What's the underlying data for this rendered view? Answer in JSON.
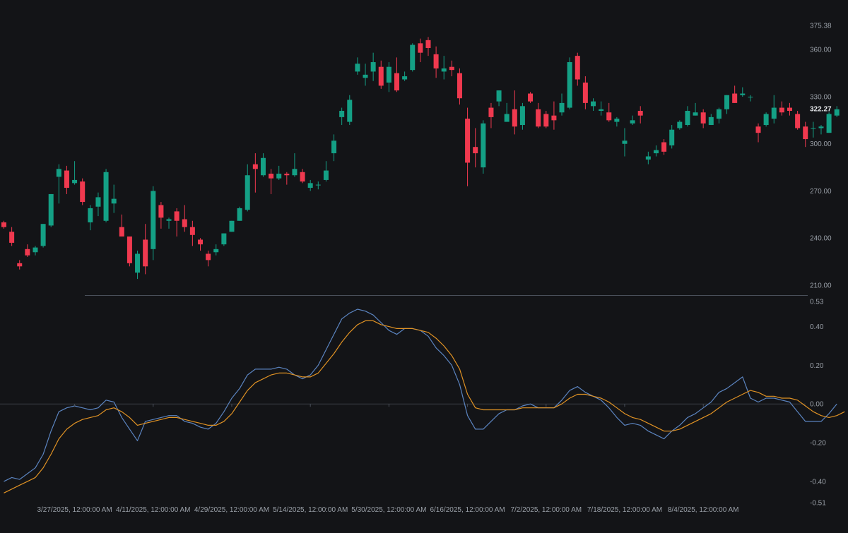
{
  "colors": {
    "background": "#131417",
    "up": "#14a085",
    "down": "#f0394f",
    "fast_line": "#5b84c0",
    "slow_line": "#e09224",
    "separator": "#4a505a",
    "zero_line": "#3a3f47",
    "axis_text": "#9aa0a8",
    "last_price_text": "#e6e8eb"
  },
  "chart_data": [
    {
      "type": "candlestick",
      "title": "",
      "y_axis_ticks": [
        210.0,
        240.0,
        270.0,
        300.0,
        330.0,
        360.0,
        375.38
      ],
      "ylim": [
        208.5,
        376.5
      ],
      "last_value_label": "322.27",
      "last_value": 322.27,
      "x_labels": [
        "3/27/2025, 12:00:00 AM",
        "4/11/2025, 12:00:00 AM",
        "4/29/2025, 12:00:00 AM",
        "5/14/2025, 12:00:00 AM",
        "5/30/2025, 12:00:00 AM",
        "6/16/2025, 12:00:00 AM",
        "7/2/2025, 12:00:00 AM",
        "7/18/2025, 12:00:00 AM",
        "8/4/2025, 12:00:00 AM"
      ],
      "x_label_bar_index": [
        9,
        19,
        29,
        39,
        49,
        59,
        69,
        79,
        89
      ],
      "candles": [
        [
          250,
          247,
          251,
          246
        ],
        [
          244,
          237,
          247,
          235
        ],
        [
          224,
          222,
          226,
          220
        ],
        [
          233,
          229,
          236,
          228
        ],
        [
          231,
          234,
          235,
          229
        ],
        [
          235,
          249,
          249,
          234
        ],
        [
          248,
          268,
          268,
          247
        ],
        [
          279,
          284,
          287,
          262
        ],
        [
          283,
          272,
          286,
          268
        ],
        [
          275,
          277,
          289,
          274
        ],
        [
          276,
          263,
          278,
          261
        ],
        [
          250,
          259,
          261,
          245
        ],
        [
          260,
          266,
          269,
          254
        ],
        [
          251,
          282,
          284,
          250
        ],
        [
          262,
          265,
          274,
          256
        ],
        [
          247,
          241,
          255,
          241
        ],
        [
          241,
          224,
          241,
          222
        ],
        [
          218,
          230,
          232,
          214
        ],
        [
          239,
          222,
          249,
          217
        ],
        [
          233,
          270,
          273,
          226
        ],
        [
          261,
          253,
          263,
          246
        ],
        [
          251,
          252,
          253,
          246
        ],
        [
          257,
          251,
          259,
          241
        ],
        [
          252,
          247,
          261,
          244
        ],
        [
          247,
          242,
          251,
          235
        ],
        [
          239,
          236,
          240,
          232
        ],
        [
          230,
          226,
          232,
          222
        ],
        [
          231,
          233,
          236,
          229
        ],
        [
          236,
          243,
          243,
          235
        ],
        [
          244,
          251,
          251,
          244
        ],
        [
          251,
          259,
          260,
          251
        ],
        [
          258,
          280,
          287,
          257
        ],
        [
          287,
          284,
          294,
          269
        ],
        [
          280,
          291,
          294,
          279
        ],
        [
          281,
          278,
          284,
          268
        ],
        [
          278,
          281,
          286,
          277
        ],
        [
          281,
          280,
          282,
          274
        ],
        [
          280,
          284,
          294,
          279
        ],
        [
          282,
          276,
          284,
          275
        ],
        [
          272,
          275,
          277,
          270
        ],
        [
          274,
          274,
          276,
          271
        ],
        [
          277,
          283,
          289,
          276
        ],
        [
          294,
          302,
          306,
          289
        ],
        [
          317,
          321,
          323,
          312
        ],
        [
          314,
          328,
          331,
          312
        ],
        [
          346,
          351,
          355,
          344
        ],
        [
          342,
          344,
          351,
          337
        ],
        [
          346,
          352,
          358,
          340
        ],
        [
          349,
          337,
          353,
          335
        ],
        [
          339,
          349,
          352,
          333
        ],
        [
          345,
          334,
          355,
          333
        ],
        [
          341,
          343,
          346,
          340
        ],
        [
          347,
          363,
          364,
          346
        ],
        [
          364,
          358,
          367,
          352
        ],
        [
          366,
          361,
          368,
          356
        ],
        [
          357,
          348,
          362,
          342
        ],
        [
          346,
          348,
          356,
          341
        ],
        [
          349,
          347,
          353,
          343
        ],
        [
          345,
          329,
          348,
          325
        ],
        [
          316,
          288,
          323,
          273
        ],
        [
          298,
          294,
          310,
          285
        ],
        [
          285,
          313,
          315,
          281
        ],
        [
          323,
          317,
          326,
          310
        ],
        [
          327,
          334,
          334,
          324
        ],
        [
          314,
          319,
          326,
          314
        ],
        [
          322,
          311,
          334,
          306
        ],
        [
          312,
          324,
          326,
          309
        ],
        [
          332,
          327,
          333,
          326
        ],
        [
          322,
          311,
          326,
          310
        ],
        [
          319,
          311,
          321,
          310
        ],
        [
          318,
          315,
          327,
          309
        ],
        [
          320,
          326,
          332,
          318
        ],
        [
          323,
          352,
          355,
          322
        ],
        [
          356,
          341,
          358,
          337
        ],
        [
          339,
          326,
          343,
          322
        ],
        [
          324,
          327,
          329,
          321
        ],
        [
          321,
          322,
          327,
          318
        ],
        [
          320,
          315,
          326,
          314
        ],
        [
          314,
          316,
          317,
          311
        ],
        [
          300,
          302,
          310,
          292
        ],
        [
          313,
          315,
          318,
          312
        ],
        [
          321,
          318,
          324,
          313
        ],
        [
          290,
          292,
          295,
          287
        ],
        [
          294,
          296,
          299,
          292
        ],
        [
          301,
          295,
          303,
          293
        ],
        [
          299,
          309,
          312,
          297
        ],
        [
          310,
          314,
          315,
          309
        ],
        [
          312,
          321,
          324,
          311
        ],
        [
          318,
          320,
          326,
          318
        ],
        [
          320,
          313,
          322,
          310
        ],
        [
          312,
          317,
          319,
          312
        ],
        [
          316,
          322,
          323,
          313
        ],
        [
          322,
          331,
          331,
          319
        ],
        [
          332,
          326,
          337,
          326
        ],
        [
          331,
          332,
          336,
          330
        ],
        [
          330,
          330,
          331,
          327
        ],
        [
          311,
          307,
          313,
          301
        ],
        [
          312,
          319,
          320,
          311
        ],
        [
          316,
          323,
          331,
          313
        ],
        [
          323,
          320,
          327,
          318
        ],
        [
          323,
          321,
          326,
          318
        ],
        [
          319,
          310,
          321,
          309
        ],
        [
          311,
          303,
          314,
          298
        ],
        [
          310,
          310,
          314,
          304
        ],
        [
          310,
          311,
          312,
          306
        ],
        [
          307,
          319,
          320,
          307
        ],
        [
          318,
          322,
          324,
          317
        ]
      ]
    },
    {
      "type": "line",
      "title": "",
      "y_axis_ticks": [
        -0.51,
        -0.4,
        -0.2,
        0.0,
        0.2,
        0.4,
        0.53
      ],
      "ylim": [
        -0.51,
        0.53
      ],
      "series": [
        {
          "color": "#5b84c0",
          "values": [
            -0.4,
            -0.38,
            -0.39,
            -0.36,
            -0.33,
            -0.26,
            -0.14,
            -0.04,
            -0.02,
            -0.01,
            -0.02,
            -0.03,
            -0.02,
            0.02,
            0.01,
            -0.07,
            -0.13,
            -0.19,
            -0.09,
            -0.08,
            -0.07,
            -0.06,
            -0.06,
            -0.09,
            -0.1,
            -0.12,
            -0.13,
            -0.1,
            -0.04,
            0.03,
            0.08,
            0.15,
            0.18,
            0.18,
            0.18,
            0.19,
            0.18,
            0.15,
            0.13,
            0.15,
            0.2,
            0.28,
            0.36,
            0.44,
            0.47,
            0.49,
            0.48,
            0.46,
            0.42,
            0.38,
            0.36,
            0.39,
            0.39,
            0.38,
            0.35,
            0.29,
            0.25,
            0.2,
            0.1,
            -0.06,
            -0.13,
            -0.13,
            -0.09,
            -0.05,
            -0.03,
            -0.03,
            -0.01,
            0.0,
            -0.02,
            -0.02,
            -0.02,
            0.02,
            0.07,
            0.09,
            0.06,
            0.04,
            0.02,
            -0.02,
            -0.07,
            -0.11,
            -0.1,
            -0.11,
            -0.14,
            -0.16,
            -0.18,
            -0.14,
            -0.11,
            -0.07,
            -0.05,
            -0.02,
            0.01,
            0.06,
            0.08,
            0.11,
            0.14,
            0.03,
            0.01,
            0.03,
            0.03,
            0.02,
            0.01,
            -0.04,
            -0.09,
            -0.09,
            -0.09,
            -0.05,
            0.0
          ]
        },
        {
          "color": "#e09224",
          "values": [
            -0.46,
            -0.44,
            -0.42,
            -0.4,
            -0.38,
            -0.33,
            -0.26,
            -0.18,
            -0.13,
            -0.1,
            -0.08,
            -0.07,
            -0.06,
            -0.03,
            -0.02,
            -0.04,
            -0.07,
            -0.11,
            -0.1,
            -0.09,
            -0.08,
            -0.07,
            -0.07,
            -0.08,
            -0.09,
            -0.1,
            -0.11,
            -0.11,
            -0.09,
            -0.05,
            0.01,
            0.07,
            0.11,
            0.13,
            0.15,
            0.16,
            0.16,
            0.15,
            0.14,
            0.14,
            0.16,
            0.21,
            0.26,
            0.32,
            0.37,
            0.41,
            0.43,
            0.43,
            0.41,
            0.4,
            0.39,
            0.39,
            0.39,
            0.38,
            0.37,
            0.34,
            0.3,
            0.25,
            0.18,
            0.05,
            -0.02,
            -0.03,
            -0.03,
            -0.03,
            -0.03,
            -0.03,
            -0.02,
            -0.02,
            -0.02,
            -0.02,
            -0.02,
            0.0,
            0.03,
            0.05,
            0.05,
            0.04,
            0.03,
            0.01,
            -0.02,
            -0.05,
            -0.07,
            -0.08,
            -0.1,
            -0.12,
            -0.14,
            -0.14,
            -0.13,
            -0.11,
            -0.09,
            -0.07,
            -0.05,
            -0.02,
            0.01,
            0.03,
            0.05,
            0.07,
            0.06,
            0.04,
            0.04,
            0.03,
            0.03,
            0.02,
            -0.01,
            -0.04,
            -0.06,
            -0.07,
            -0.06,
            -0.04
          ]
        }
      ]
    }
  ]
}
